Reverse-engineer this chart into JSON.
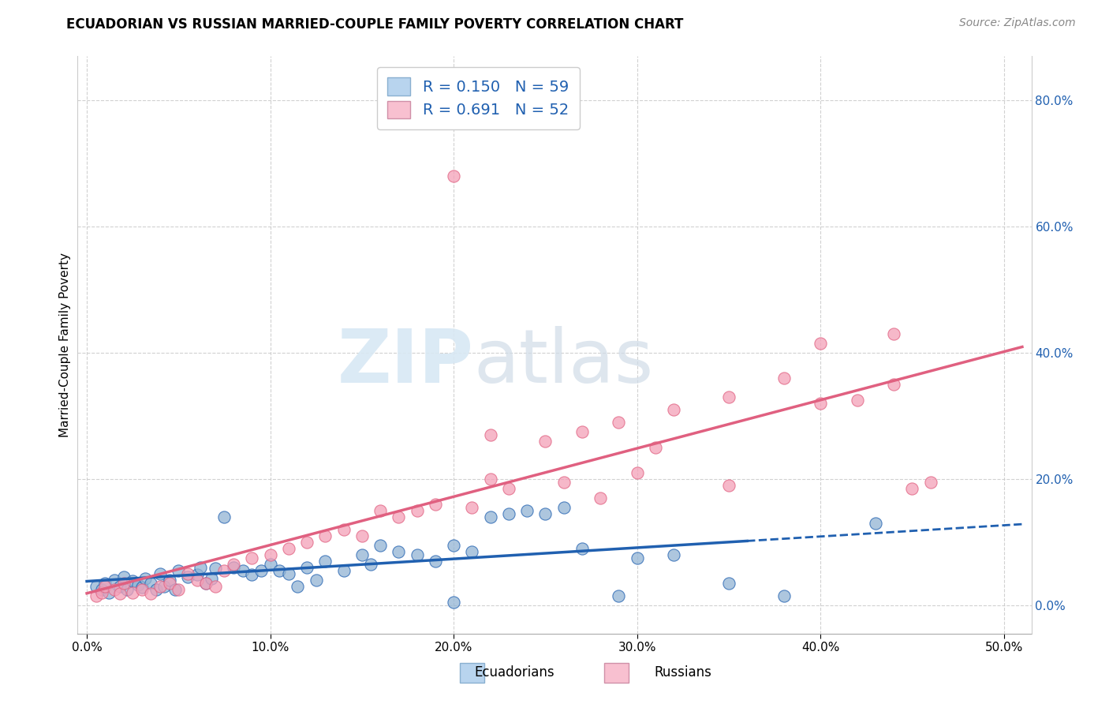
{
  "title": "ECUADORIAN VS RUSSIAN MARRIED-COUPLE FAMILY POVERTY CORRELATION CHART",
  "source": "Source: ZipAtlas.com",
  "xlabel_ticks": [
    "0.0%",
    "10.0%",
    "20.0%",
    "30.0%",
    "40.0%",
    "50.0%"
  ],
  "ylabel_ticks": [
    "0.0%",
    "20.0%",
    "40.0%",
    "60.0%",
    "80.0%"
  ],
  "xlim": [
    -0.005,
    0.515
  ],
  "ylim": [
    -0.045,
    0.87
  ],
  "ylabel": "Married-Couple Family Poverty",
  "legend_labels_bottom": [
    "Ecuadorians",
    "Russians"
  ],
  "blue_scatter_color": "#92b4d4",
  "pink_scatter_color": "#f4a0b8",
  "blue_line_color": "#2060b0",
  "pink_line_color": "#e06080",
  "legend_blue_fill": "#b8d4ee",
  "legend_pink_fill": "#f8c0d0",
  "r_ecuadorian": 0.15,
  "n_ecuadorian": 59,
  "r_russian": 0.691,
  "n_russian": 52,
  "watermark_zip": "ZIP",
  "watermark_atlas": "atlas",
  "legend_text_color": "#2060b0",
  "grid_color": "#cccccc",
  "tick_color": "#2060b0",
  "title_fontsize": 12,
  "source_fontsize": 10,
  "tick_fontsize": 11,
  "ylabel_fontsize": 11,
  "ecu_x": [
    0.005,
    0.008,
    0.01,
    0.012,
    0.015,
    0.018,
    0.02,
    0.022,
    0.025,
    0.028,
    0.03,
    0.032,
    0.035,
    0.038,
    0.04,
    0.042,
    0.045,
    0.048,
    0.05,
    0.055,
    0.06,
    0.062,
    0.065,
    0.068,
    0.07,
    0.075,
    0.08,
    0.085,
    0.09,
    0.095,
    0.1,
    0.105,
    0.11,
    0.115,
    0.12,
    0.125,
    0.13,
    0.14,
    0.15,
    0.155,
    0.16,
    0.17,
    0.18,
    0.19,
    0.2,
    0.21,
    0.22,
    0.23,
    0.24,
    0.25,
    0.26,
    0.27,
    0.3,
    0.32,
    0.35,
    0.38,
    0.2,
    0.29,
    0.43
  ],
  "ecu_y": [
    0.03,
    0.025,
    0.035,
    0.02,
    0.04,
    0.03,
    0.045,
    0.025,
    0.038,
    0.032,
    0.028,
    0.042,
    0.035,
    0.025,
    0.05,
    0.03,
    0.04,
    0.025,
    0.055,
    0.045,
    0.048,
    0.06,
    0.035,
    0.042,
    0.058,
    0.14,
    0.06,
    0.055,
    0.048,
    0.055,
    0.065,
    0.055,
    0.05,
    0.03,
    0.06,
    0.04,
    0.07,
    0.055,
    0.08,
    0.065,
    0.095,
    0.085,
    0.08,
    0.07,
    0.095,
    0.085,
    0.14,
    0.145,
    0.15,
    0.145,
    0.155,
    0.09,
    0.075,
    0.08,
    0.035,
    0.015,
    0.005,
    0.015,
    0.13
  ],
  "rus_x": [
    0.005,
    0.008,
    0.01,
    0.015,
    0.018,
    0.02,
    0.025,
    0.03,
    0.035,
    0.04,
    0.045,
    0.05,
    0.055,
    0.06,
    0.065,
    0.07,
    0.075,
    0.08,
    0.09,
    0.1,
    0.11,
    0.12,
    0.13,
    0.14,
    0.15,
    0.16,
    0.17,
    0.18,
    0.19,
    0.2,
    0.21,
    0.22,
    0.23,
    0.25,
    0.26,
    0.27,
    0.28,
    0.29,
    0.3,
    0.31,
    0.32,
    0.35,
    0.38,
    0.4,
    0.42,
    0.44,
    0.46,
    0.22,
    0.35,
    0.4,
    0.44,
    0.45
  ],
  "rus_y": [
    0.015,
    0.02,
    0.03,
    0.025,
    0.018,
    0.035,
    0.02,
    0.025,
    0.018,
    0.03,
    0.035,
    0.025,
    0.05,
    0.04,
    0.035,
    0.03,
    0.055,
    0.065,
    0.075,
    0.08,
    0.09,
    0.1,
    0.11,
    0.12,
    0.11,
    0.15,
    0.14,
    0.15,
    0.16,
    0.68,
    0.155,
    0.2,
    0.185,
    0.26,
    0.195,
    0.275,
    0.17,
    0.29,
    0.21,
    0.25,
    0.31,
    0.33,
    0.36,
    0.415,
    0.325,
    0.35,
    0.195,
    0.27,
    0.19,
    0.32,
    0.43,
    0.185
  ]
}
